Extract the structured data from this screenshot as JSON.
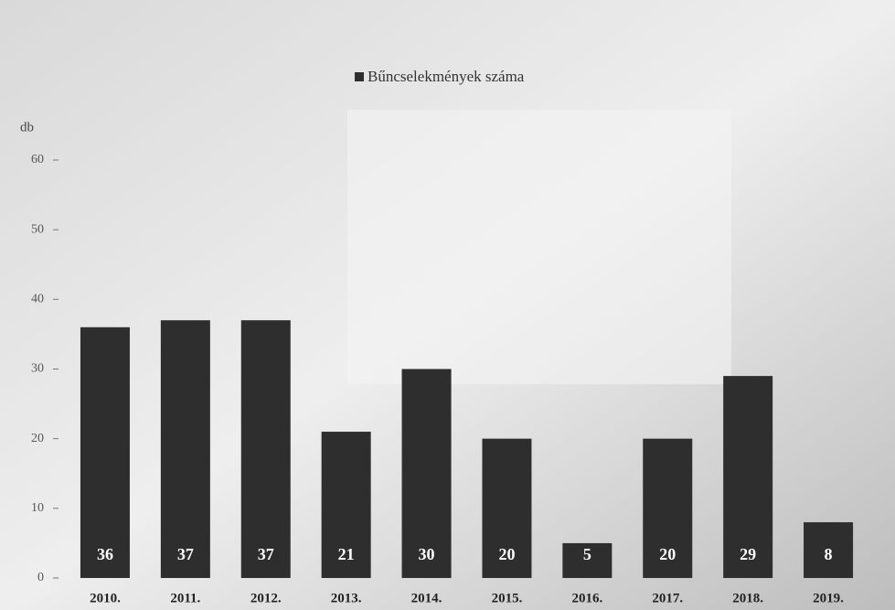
{
  "chart_data": {
    "type": "bar",
    "y_label": "db",
    "categories": [
      "2010.",
      "2011.",
      "2012.",
      "2013.",
      "2014.",
      "2015.",
      "2016.",
      "2017.",
      "2018.",
      "2019."
    ],
    "series": [
      {
        "name": "Bűncselekmények száma",
        "color": "#2e2e2e",
        "values": [
          36,
          37,
          37,
          21,
          30,
          20,
          5,
          20,
          29,
          8
        ]
      }
    ],
    "ylim": [
      0,
      60
    ],
    "yticks": [
      0,
      10,
      20,
      30,
      40,
      50,
      60
    ],
    "grid": false,
    "legend": "top",
    "data_labels": true
  }
}
